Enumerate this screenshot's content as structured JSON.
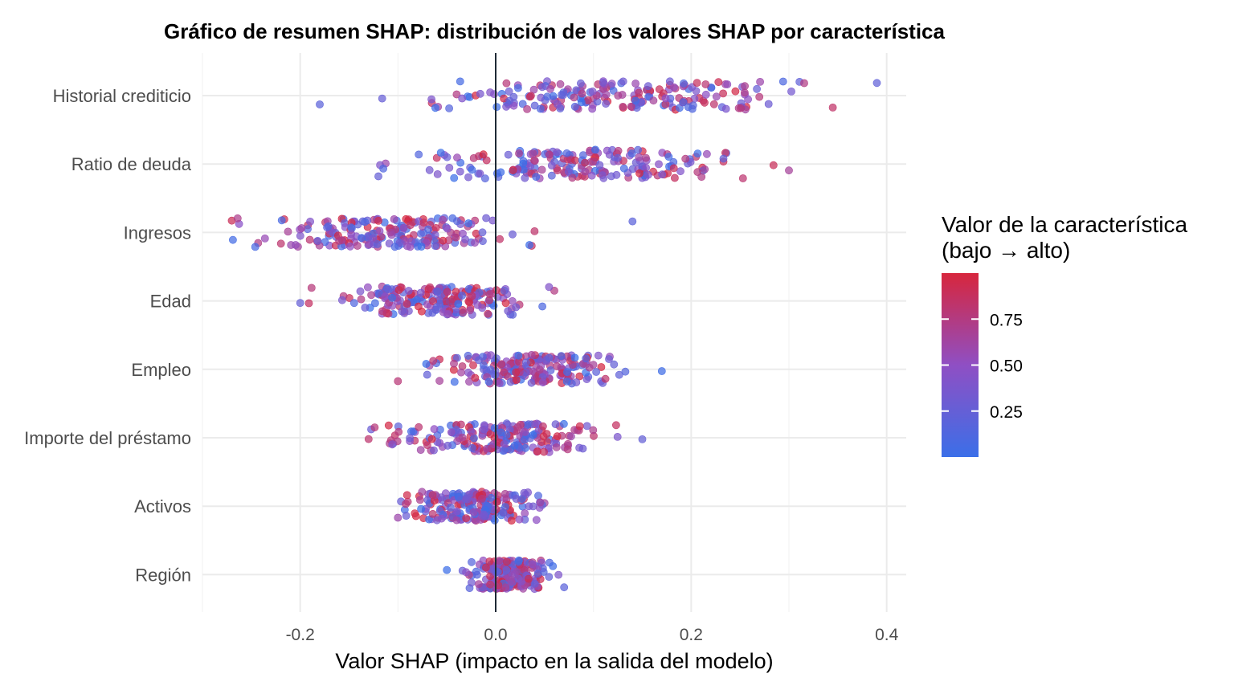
{
  "chart_data": {
    "type": "scatter",
    "subtype": "beeswarm",
    "title": "Gráfico de resumen SHAP: distribución de los valores SHAP por característica",
    "xlabel": "Valor SHAP (impacto en la salida del modelo)",
    "ylabel": "",
    "xlim": [
      -0.3,
      0.42
    ],
    "x_ticks": [
      -0.2,
      0.0,
      0.2,
      0.4
    ],
    "x_tick_labels": [
      "-0.2",
      "0.0",
      "0.2",
      "0.4"
    ],
    "grid": true,
    "reference_line_x": 0,
    "features": [
      "Historial crediticio",
      "Ratio de deuda",
      "Ingresos",
      "Edad",
      "Empleo",
      "Importe del préstamo",
      "Activos",
      "Región"
    ],
    "feature_distributions": [
      {
        "feature": "Historial crediticio",
        "min": -0.18,
        "max": 0.39,
        "center": 0.12,
        "spread": 0.09
      },
      {
        "feature": "Ratio de deuda",
        "min": -0.12,
        "max": 0.3,
        "center": 0.09,
        "spread": 0.07
      },
      {
        "feature": "Ingresos",
        "min": -0.27,
        "max": 0.14,
        "center": -0.11,
        "spread": 0.06
      },
      {
        "feature": "Edad",
        "min": -0.2,
        "max": 0.06,
        "center": -0.06,
        "spread": 0.045
      },
      {
        "feature": "Empleo",
        "min": -0.1,
        "max": 0.17,
        "center": 0.03,
        "spread": 0.045
      },
      {
        "feature": "Importe del préstamo",
        "min": -0.13,
        "max": 0.15,
        "center": 0.0,
        "spread": 0.05
      },
      {
        "feature": "Activos",
        "min": -0.1,
        "max": 0.05,
        "center": -0.02,
        "spread": 0.03
      },
      {
        "feature": "Región",
        "min": -0.05,
        "max": 0.07,
        "center": 0.01,
        "spread": 0.02
      }
    ],
    "legend": {
      "title": "Valor de la característica\n(bajo → alto)",
      "title_lines": [
        "Valor de la característica",
        "(bajo → alto)"
      ],
      "ticks": [
        0.25,
        0.5,
        0.75
      ],
      "tick_labels": [
        "0.25",
        "0.50",
        "0.75"
      ],
      "range": [
        0,
        1
      ],
      "low_color": "#3b6fe8",
      "mid_color": "#8f4fc4",
      "high_color": "#d7263d",
      "placement": "right"
    }
  },
  "colors": {
    "background": "#ffffff",
    "zero_line": "#1f2a36",
    "grid": "#ebebeb"
  }
}
